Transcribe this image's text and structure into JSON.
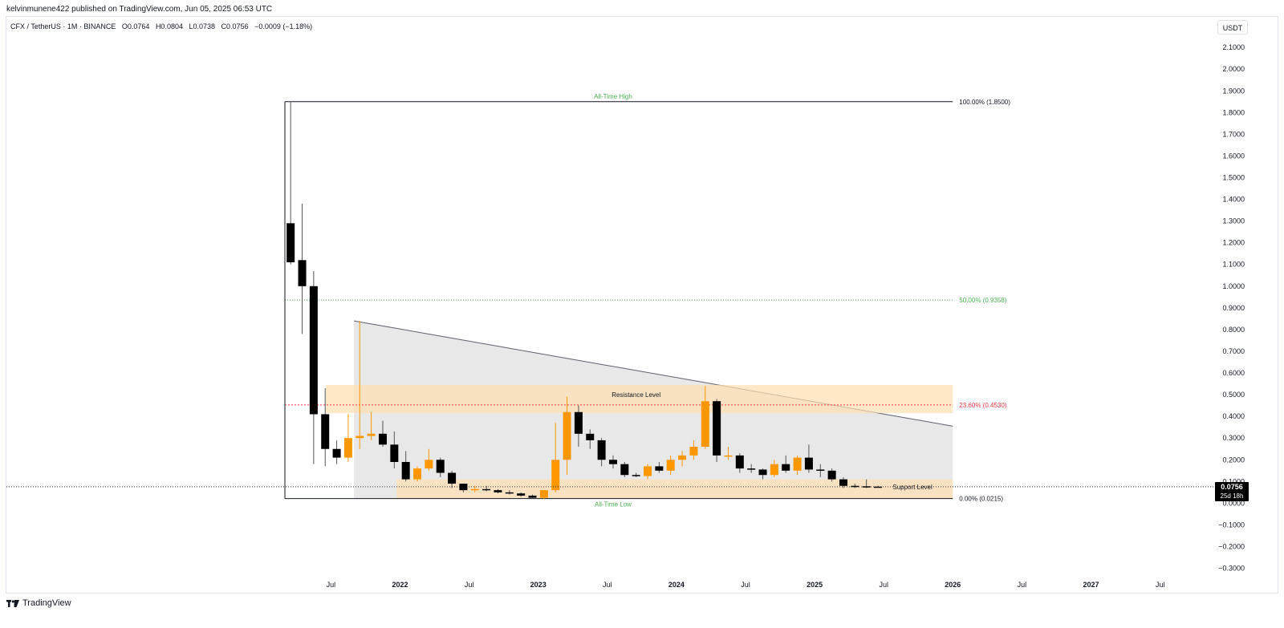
{
  "header": {
    "published": "kelvinmunene422 published on TradingView.com, Jun 05, 2025 06:53 UTC"
  },
  "symbol_bar": {
    "symbol": "CFX / TetherUS · 1M · BINANCE",
    "open": "O0.0764",
    "high": "H0.0804",
    "low": "L0.0738",
    "close": "C0.0756",
    "change": "−0.0009 (−1.18%)"
  },
  "currency_button": "USDT",
  "footer": {
    "brand": "TradingView",
    "logo_icon": "tradingview-logo-icon"
  },
  "price_badge": {
    "price": "0.0756",
    "countdown": "25d 18h"
  },
  "colors": {
    "up": "#ff9800",
    "down": "#000000",
    "fib_green": "#4caf50",
    "fib_red": "#f23645",
    "zone": "#ffe0b2",
    "triangle": "#d9d9d9"
  },
  "chart_data": {
    "type": "candlestick",
    "title": "",
    "xlabel": "",
    "ylabel": "",
    "ylim": [
      -0.3,
      2.15
    ],
    "y_ticks": [
      "2.1000",
      "2.0000",
      "1.9000",
      "1.8000",
      "1.7000",
      "1.6000",
      "1.5000",
      "1.4000",
      "1.3000",
      "1.2000",
      "1.1000",
      "1.0000",
      "0.9000",
      "0.8000",
      "0.7000",
      "0.6000",
      "0.5000",
      "0.4000",
      "0.3000",
      "0.2000",
      "0.1000",
      "0.0000",
      "−0.1000",
      "−0.2000",
      "−0.3000"
    ],
    "x_ticks": [
      {
        "label": "Jul",
        "date": "2021-07"
      },
      {
        "label": "2022",
        "date": "2022-01"
      },
      {
        "label": "Jul",
        "date": "2022-07"
      },
      {
        "label": "2023",
        "date": "2023-01"
      },
      {
        "label": "Jul",
        "date": "2023-07"
      },
      {
        "label": "2024",
        "date": "2024-01"
      },
      {
        "label": "Jul",
        "date": "2024-07"
      },
      {
        "label": "2025",
        "date": "2025-01"
      },
      {
        "label": "Jul",
        "date": "2025-07"
      },
      {
        "label": "2026",
        "date": "2026-01"
      },
      {
        "label": "Jul",
        "date": "2026-07"
      },
      {
        "label": "2027",
        "date": "2027-01"
      },
      {
        "label": "Jul",
        "date": "2027-07"
      }
    ],
    "candles": [
      {
        "date": "2021-03",
        "o": 1.29,
        "h": 1.85,
        "l": 1.1,
        "c": 1.11
      },
      {
        "date": "2021-04",
        "o": 1.12,
        "h": 1.38,
        "l": 0.78,
        "c": 1.0
      },
      {
        "date": "2021-05",
        "o": 1.0,
        "h": 1.07,
        "l": 0.18,
        "c": 0.41
      },
      {
        "date": "2021-06",
        "o": 0.41,
        "h": 0.53,
        "l": 0.17,
        "c": 0.25
      },
      {
        "date": "2021-07",
        "o": 0.25,
        "h": 0.29,
        "l": 0.18,
        "c": 0.21
      },
      {
        "date": "2021-08",
        "o": 0.21,
        "h": 0.41,
        "l": 0.19,
        "c": 0.3
      },
      {
        "date": "2021-09",
        "o": 0.3,
        "h": 0.84,
        "l": 0.25,
        "c": 0.31
      },
      {
        "date": "2021-10",
        "o": 0.31,
        "h": 0.42,
        "l": 0.29,
        "c": 0.32
      },
      {
        "date": "2021-11",
        "o": 0.32,
        "h": 0.38,
        "l": 0.26,
        "c": 0.27
      },
      {
        "date": "2021-12",
        "o": 0.27,
        "h": 0.33,
        "l": 0.16,
        "c": 0.19
      },
      {
        "date": "2022-01",
        "o": 0.19,
        "h": 0.24,
        "l": 0.1,
        "c": 0.11
      },
      {
        "date": "2022-02",
        "o": 0.11,
        "h": 0.17,
        "l": 0.1,
        "c": 0.16
      },
      {
        "date": "2022-03",
        "o": 0.16,
        "h": 0.25,
        "l": 0.15,
        "c": 0.2
      },
      {
        "date": "2022-04",
        "o": 0.2,
        "h": 0.21,
        "l": 0.12,
        "c": 0.14
      },
      {
        "date": "2022-05",
        "o": 0.14,
        "h": 0.15,
        "l": 0.07,
        "c": 0.09
      },
      {
        "date": "2022-06",
        "o": 0.09,
        "h": 0.09,
        "l": 0.05,
        "c": 0.06
      },
      {
        "date": "2022-07",
        "o": 0.06,
        "h": 0.08,
        "l": 0.05,
        "c": 0.065
      },
      {
        "date": "2022-08",
        "o": 0.065,
        "h": 0.08,
        "l": 0.055,
        "c": 0.06
      },
      {
        "date": "2022-09",
        "o": 0.06,
        "h": 0.065,
        "l": 0.045,
        "c": 0.05
      },
      {
        "date": "2022-10",
        "o": 0.05,
        "h": 0.06,
        "l": 0.04,
        "c": 0.045
      },
      {
        "date": "2022-11",
        "o": 0.045,
        "h": 0.05,
        "l": 0.03,
        "c": 0.035
      },
      {
        "date": "2022-12",
        "o": 0.035,
        "h": 0.04,
        "l": 0.02,
        "c": 0.025
      },
      {
        "date": "2023-01",
        "o": 0.025,
        "h": 0.06,
        "l": 0.02,
        "c": 0.06
      },
      {
        "date": "2023-02",
        "o": 0.06,
        "h": 0.37,
        "l": 0.05,
        "c": 0.2
      },
      {
        "date": "2023-03",
        "o": 0.2,
        "h": 0.49,
        "l": 0.13,
        "c": 0.42
      },
      {
        "date": "2023-04",
        "o": 0.42,
        "h": 0.45,
        "l": 0.26,
        "c": 0.32
      },
      {
        "date": "2023-05",
        "o": 0.32,
        "h": 0.34,
        "l": 0.25,
        "c": 0.29
      },
      {
        "date": "2023-06",
        "o": 0.29,
        "h": 0.3,
        "l": 0.17,
        "c": 0.2
      },
      {
        "date": "2023-07",
        "o": 0.2,
        "h": 0.22,
        "l": 0.16,
        "c": 0.18
      },
      {
        "date": "2023-08",
        "o": 0.18,
        "h": 0.19,
        "l": 0.12,
        "c": 0.13
      },
      {
        "date": "2023-09",
        "o": 0.13,
        "h": 0.14,
        "l": 0.12,
        "c": 0.125
      },
      {
        "date": "2023-10",
        "o": 0.125,
        "h": 0.18,
        "l": 0.11,
        "c": 0.17
      },
      {
        "date": "2023-11",
        "o": 0.17,
        "h": 0.19,
        "l": 0.14,
        "c": 0.15
      },
      {
        "date": "2023-12",
        "o": 0.15,
        "h": 0.22,
        "l": 0.13,
        "c": 0.2
      },
      {
        "date": "2024-01",
        "o": 0.2,
        "h": 0.24,
        "l": 0.17,
        "c": 0.22
      },
      {
        "date": "2024-02",
        "o": 0.22,
        "h": 0.29,
        "l": 0.2,
        "c": 0.26
      },
      {
        "date": "2024-03",
        "o": 0.26,
        "h": 0.54,
        "l": 0.25,
        "c": 0.47
      },
      {
        "date": "2024-04",
        "o": 0.47,
        "h": 0.48,
        "l": 0.19,
        "c": 0.22
      },
      {
        "date": "2024-05",
        "o": 0.22,
        "h": 0.26,
        "l": 0.2,
        "c": 0.22
      },
      {
        "date": "2024-06",
        "o": 0.22,
        "h": 0.23,
        "l": 0.14,
        "c": 0.16
      },
      {
        "date": "2024-07",
        "o": 0.16,
        "h": 0.18,
        "l": 0.14,
        "c": 0.155
      },
      {
        "date": "2024-08",
        "o": 0.155,
        "h": 0.16,
        "l": 0.11,
        "c": 0.13
      },
      {
        "date": "2024-09",
        "o": 0.13,
        "h": 0.2,
        "l": 0.12,
        "c": 0.18
      },
      {
        "date": "2024-10",
        "o": 0.18,
        "h": 0.22,
        "l": 0.14,
        "c": 0.15
      },
      {
        "date": "2024-11",
        "o": 0.15,
        "h": 0.22,
        "l": 0.13,
        "c": 0.21
      },
      {
        "date": "2024-12",
        "o": 0.21,
        "h": 0.27,
        "l": 0.14,
        "c": 0.155
      },
      {
        "date": "2025-01",
        "o": 0.155,
        "h": 0.18,
        "l": 0.12,
        "c": 0.15
      },
      {
        "date": "2025-02",
        "o": 0.15,
        "h": 0.16,
        "l": 0.1,
        "c": 0.11
      },
      {
        "date": "2025-03",
        "o": 0.11,
        "h": 0.12,
        "l": 0.07,
        "c": 0.08
      },
      {
        "date": "2025-04",
        "o": 0.08,
        "h": 0.09,
        "l": 0.07,
        "c": 0.078
      },
      {
        "date": "2025-05",
        "o": 0.078,
        "h": 0.11,
        "l": 0.07,
        "c": 0.0764
      },
      {
        "date": "2025-06",
        "o": 0.0764,
        "h": 0.0804,
        "l": 0.0738,
        "c": 0.0756
      }
    ],
    "fib_levels": [
      {
        "label": "100.00% (1.8500)",
        "value": 1.85,
        "color": "#131722"
      },
      {
        "label": "50.00% (0.9358)",
        "value": 0.9358,
        "color": "#4caf50"
      },
      {
        "label": "23.60% (0.4530)",
        "value": 0.453,
        "color": "#f23645"
      },
      {
        "label": "0.00% (0.0215)",
        "value": 0.0215,
        "color": "#131722"
      }
    ],
    "fib_start_date": "2021-03",
    "fib_end_date": "2025-12",
    "annotations": [
      {
        "text": "All-Time High",
        "value": 1.85,
        "date": "2023-07",
        "position": "above",
        "color": "#4caf50"
      },
      {
        "text": "All-Time Low",
        "value": 0.0215,
        "date": "2023-07",
        "position": "below",
        "color": "#4caf50"
      },
      {
        "text": "Resistance Level",
        "value": 0.5,
        "date": "2023-09",
        "position": "on",
        "color": "#131722"
      },
      {
        "text": "Support Level",
        "value": 0.075,
        "date": "2025-09",
        "position": "on",
        "color": "#131722"
      }
    ],
    "resistance_zone": {
      "start": "2021-06",
      "end": "2025-12",
      "low": 0.415,
      "high": 0.545
    },
    "support_zone": {
      "start": "2021-12",
      "end": "2025-12",
      "low": 0.0215,
      "high": 0.11
    },
    "triangle": {
      "apex_start": {
        "date": "2021-09",
        "value": 0.84
      },
      "end": {
        "date": "2025-12",
        "value": 0.355
      },
      "base": 0.0215
    },
    "last_price": 0.0756
  }
}
